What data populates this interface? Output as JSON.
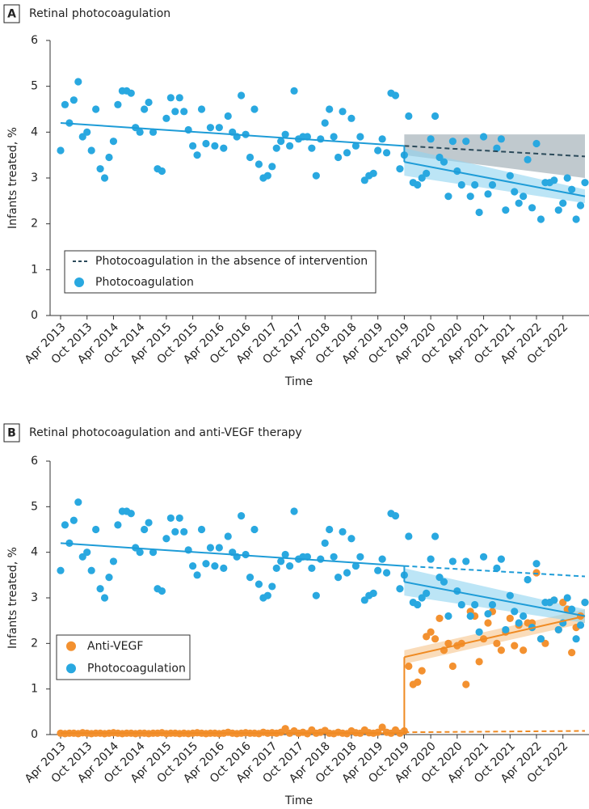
{
  "chart_data": [
    {
      "type": "scatter",
      "panel": "A",
      "title": "Retinal photocoagulation",
      "x_label": "Time",
      "y_label": "Infants treated, %",
      "ylim": [
        0,
        6
      ],
      "yticks": [
        0,
        1,
        2,
        3,
        4,
        5,
        6
      ],
      "intervention": "Oct 2019",
      "legend": "bottom-left",
      "categories": [
        "Apr 2013",
        null,
        null,
        null,
        null,
        null,
        "Oct 2013",
        null,
        null,
        null,
        null,
        null,
        "Apr 2014",
        null,
        null,
        null,
        null,
        null,
        "Oct 2014",
        null,
        null,
        null,
        null,
        null,
        "Apr 2015",
        null,
        null,
        null,
        null,
        null,
        "Oct 2015",
        null,
        null,
        null,
        null,
        null,
        "Apr 2016",
        null,
        null,
        null,
        null,
        null,
        "Oct 2016",
        null,
        null,
        null,
        null,
        null,
        "Apr 2017",
        null,
        null,
        null,
        null,
        null,
        "Oct 2017",
        null,
        null,
        null,
        null,
        null,
        "Apr 2018",
        null,
        null,
        null,
        null,
        null,
        "Oct 2018",
        null,
        null,
        null,
        null,
        null,
        "Apr 2019",
        null,
        null,
        null,
        null,
        null,
        "Oct 2019",
        null,
        null,
        null,
        null,
        null,
        "Apr 2020",
        null,
        null,
        null,
        null,
        null,
        "Oct 2020",
        null,
        null,
        null,
        null,
        null,
        "Apr 2021",
        null,
        null,
        null,
        null,
        null,
        "Oct 2021",
        null,
        null,
        null,
        null,
        null,
        "Apr 2022",
        null,
        null,
        null,
        null,
        null,
        "Oct 2022",
        null,
        null,
        null,
        null,
        null
      ],
      "series": [
        {
          "name": "Photocoagulation",
          "color": "#29a8e0",
          "line_color": "#1e9cd7",
          "band_color": "#8fd3f0",
          "counterfactual_name": "Photocoagulation in the absence of intervention",
          "counterfactual_color": "#2b4a5a",
          "counterfactual_band_color": "#8d9ca6",
          "values": [
            3.6,
            4.6,
            4.2,
            4.7,
            5.1,
            3.9,
            4.0,
            3.6,
            4.5,
            3.2,
            3.0,
            3.45,
            3.8,
            4.6,
            4.9,
            4.9,
            4.85,
            4.1,
            4.0,
            4.5,
            4.65,
            4.0,
            3.2,
            3.15,
            4.3,
            4.75,
            4.45,
            4.75,
            4.45,
            4.05,
            3.7,
            3.5,
            4.5,
            3.75,
            4.1,
            3.7,
            4.1,
            3.65,
            4.35,
            4.0,
            3.9,
            4.8,
            3.95,
            3.45,
            4.5,
            3.3,
            3.0,
            3.05,
            3.25,
            3.65,
            3.8,
            3.95,
            3.7,
            4.9,
            3.85,
            3.9,
            3.9,
            3.65,
            3.05,
            3.85,
            4.2,
            4.5,
            3.9,
            3.45,
            4.45,
            3.55,
            4.3,
            3.7,
            3.9,
            2.95,
            3.05,
            3.1,
            3.6,
            3.85,
            3.55,
            4.85,
            4.8,
            3.2,
            3.5,
            4.35,
            2.9,
            2.85,
            3.0,
            3.1,
            3.85,
            4.35,
            3.45,
            3.35,
            2.6,
            3.8,
            3.15,
            2.85,
            3.8,
            2.6,
            2.85,
            2.25,
            3.9,
            2.65,
            2.85,
            3.65,
            3.85,
            2.3,
            3.05,
            2.7,
            2.45,
            2.6,
            3.4,
            2.35,
            3.75,
            2.1,
            2.9,
            2.9,
            2.95,
            2.3,
            2.45,
            3.0,
            2.75,
            2.1,
            2.4,
            2.9
          ],
          "trend": {
            "pre": [
              4.2,
              3.7
            ],
            "post": [
              3.35,
              2.6
            ],
            "post_band": [
              [
                3.05,
                3.65
              ],
              [
                2.45,
                2.75
              ]
            ],
            "counterfactual": [
              3.7,
              3.47
            ],
            "counterfactual_band": [
              [
                3.5,
                3.95
              ],
              [
                3.0,
                3.95
              ]
            ]
          }
        }
      ]
    },
    {
      "type": "scatter",
      "panel": "B",
      "title": "Retinal photocoagulation and anti-VEGF therapy",
      "x_label": "Time",
      "y_label": "Infants treated, %",
      "ylim": [
        0,
        6
      ],
      "yticks": [
        0,
        1,
        2,
        3,
        4,
        5,
        6
      ],
      "intervention": "Oct 2019",
      "legend": "bottom-left",
      "categories": [
        "Apr 2013",
        null,
        null,
        null,
        null,
        null,
        "Oct 2013",
        null,
        null,
        null,
        null,
        null,
        "Apr 2014",
        null,
        null,
        null,
        null,
        null,
        "Oct 2014",
        null,
        null,
        null,
        null,
        null,
        "Apr 2015",
        null,
        null,
        null,
        null,
        null,
        "Oct 2015",
        null,
        null,
        null,
        null,
        null,
        "Apr 2016",
        null,
        null,
        null,
        null,
        null,
        "Oct 2016",
        null,
        null,
        null,
        null,
        null,
        "Apr 2017",
        null,
        null,
        null,
        null,
        null,
        "Oct 2017",
        null,
        null,
        null,
        null,
        null,
        "Apr 2018",
        null,
        null,
        null,
        null,
        null,
        "Oct 2018",
        null,
        null,
        null,
        null,
        null,
        "Apr 2019",
        null,
        null,
        null,
        null,
        null,
        "Oct 2019",
        null,
        null,
        null,
        null,
        null,
        "Apr 2020",
        null,
        null,
        null,
        null,
        null,
        "Oct 2020",
        null,
        null,
        null,
        null,
        null,
        "Apr 2021",
        null,
        null,
        null,
        null,
        null,
        "Oct 2021",
        null,
        null,
        null,
        null,
        null,
        "Apr 2022",
        null,
        null,
        null,
        null,
        null,
        "Oct 2022",
        null,
        null,
        null,
        null,
        null
      ],
      "series": [
        {
          "name": "Anti-VEGF",
          "color": "#f39130",
          "line_color": "#ef8a22",
          "band_color": "#f7c48c",
          "counterfactual_color": "#ef8a22",
          "values": [
            0.03,
            0.02,
            0.03,
            0.03,
            0.02,
            0.04,
            0.03,
            0.02,
            0.03,
            0.03,
            0.02,
            0.03,
            0.04,
            0.03,
            0.02,
            0.03,
            0.03,
            0.02,
            0.03,
            0.03,
            0.02,
            0.03,
            0.03,
            0.04,
            0.02,
            0.03,
            0.03,
            0.02,
            0.03,
            0.02,
            0.03,
            0.04,
            0.03,
            0.02,
            0.03,
            0.03,
            0.02,
            0.03,
            0.05,
            0.03,
            0.02,
            0.03,
            0.04,
            0.03,
            0.03,
            0.02,
            0.05,
            0.03,
            0.04,
            0.03,
            0.05,
            0.13,
            0.03,
            0.08,
            0.03,
            0.05,
            0.02,
            0.1,
            0.03,
            0.05,
            0.09,
            0.03,
            0.02,
            0.05,
            0.03,
            0.02,
            0.08,
            0.04,
            0.03,
            0.1,
            0.04,
            0.03,
            0.05,
            0.16,
            0.05,
            0.03,
            0.1,
            0.03,
            0.08,
            1.5,
            1.1,
            1.15,
            1.4,
            2.15,
            2.25,
            2.1,
            2.55,
            1.85,
            2.0,
            1.5,
            1.95,
            2.0,
            1.1,
            2.7,
            2.6,
            1.6,
            2.1,
            2.45,
            2.7,
            2.0,
            1.85,
            2.25,
            2.55,
            1.95,
            2.4,
            1.85,
            2.45,
            2.45,
            3.55,
            2.1,
            2.0,
            2.9,
            2.95,
            2.3,
            2.9,
            2.75,
            1.8,
            2.35,
            2.6,
            2.9
          ],
          "trend": {
            "pre": [
              0.03,
              0.03
            ],
            "post": [
              1.7,
              2.6
            ],
            "post_band": [
              [
                1.55,
                1.85
              ],
              [
                2.45,
                2.75
              ]
            ],
            "counterfactual": [
              0.05,
              0.08
            ]
          }
        },
        {
          "name": "Photocoagulation",
          "color": "#29a8e0",
          "line_color": "#1e9cd7",
          "band_color": "#8fd3f0",
          "counterfactual_color": "#1e9cd7",
          "values": [
            3.6,
            4.6,
            4.2,
            4.7,
            5.1,
            3.9,
            4.0,
            3.6,
            4.5,
            3.2,
            3.0,
            3.45,
            3.8,
            4.6,
            4.9,
            4.9,
            4.85,
            4.1,
            4.0,
            4.5,
            4.65,
            4.0,
            3.2,
            3.15,
            4.3,
            4.75,
            4.45,
            4.75,
            4.45,
            4.05,
            3.7,
            3.5,
            4.5,
            3.75,
            4.1,
            3.7,
            4.1,
            3.65,
            4.35,
            4.0,
            3.9,
            4.8,
            3.95,
            3.45,
            4.5,
            3.3,
            3.0,
            3.05,
            3.25,
            3.65,
            3.8,
            3.95,
            3.7,
            4.9,
            3.85,
            3.9,
            3.9,
            3.65,
            3.05,
            3.85,
            4.2,
            4.5,
            3.9,
            3.45,
            4.45,
            3.55,
            4.3,
            3.7,
            3.9,
            2.95,
            3.05,
            3.1,
            3.6,
            3.85,
            3.55,
            4.85,
            4.8,
            3.2,
            3.5,
            4.35,
            2.9,
            2.85,
            3.0,
            3.1,
            3.85,
            4.35,
            3.45,
            3.35,
            2.6,
            3.8,
            3.15,
            2.85,
            3.8,
            2.6,
            2.85,
            2.25,
            3.9,
            2.65,
            2.85,
            3.65,
            3.85,
            2.3,
            3.05,
            2.7,
            2.45,
            2.6,
            3.4,
            2.35,
            3.75,
            2.1,
            2.9,
            2.9,
            2.95,
            2.3,
            2.45,
            3.0,
            2.75,
            2.1,
            2.4,
            2.9
          ],
          "trend": {
            "pre": [
              4.2,
              3.7
            ],
            "post": [
              3.35,
              2.6
            ],
            "post_band": [
              [
                3.05,
                3.65
              ],
              [
                2.45,
                2.75
              ]
            ],
            "counterfactual": [
              3.7,
              3.47
            ]
          }
        }
      ]
    }
  ]
}
